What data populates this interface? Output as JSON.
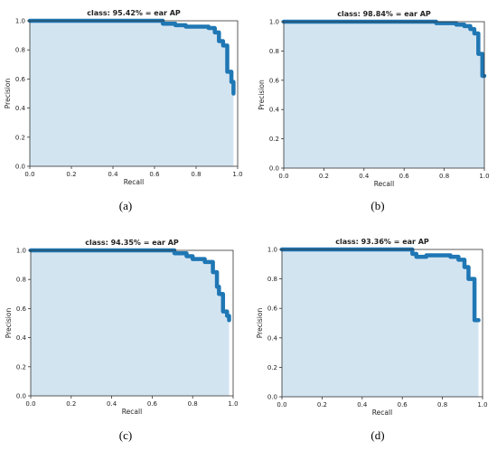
{
  "colors": {
    "line": "#1f77b4",
    "fill": "#d3e4f1",
    "axis": "#333333",
    "text": "#222222"
  },
  "chart_data": [
    {
      "type": "area",
      "caption": "(a)",
      "title": "class: 95.42% = ear AP",
      "xlabel": "Recall",
      "ylabel": "Precision",
      "xlim": [
        0,
        1.0
      ],
      "ylim": [
        0,
        1.0
      ],
      "xticks": [
        "0.0",
        "0.2",
        "0.4",
        "0.6",
        "0.8",
        "1.0"
      ],
      "yticks": [
        "0.0",
        "0.2",
        "0.4",
        "0.6",
        "0.8",
        "1.0"
      ],
      "grid": false,
      "x": [
        0,
        0.64,
        0.64,
        0.7,
        0.7,
        0.75,
        0.75,
        0.86,
        0.86,
        0.89,
        0.89,
        0.91,
        0.91,
        0.93,
        0.93,
        0.95,
        0.95,
        0.97,
        0.97,
        0.98,
        0.98
      ],
      "y": [
        1.0,
        1.0,
        0.98,
        0.98,
        0.97,
        0.97,
        0.96,
        0.96,
        0.95,
        0.95,
        0.92,
        0.92,
        0.86,
        0.86,
        0.83,
        0.83,
        0.65,
        0.65,
        0.58,
        0.58,
        0.5
      ]
    },
    {
      "type": "area",
      "caption": "(b)",
      "title": "class: 98.84% = ear AP",
      "xlabel": "Recall",
      "ylabel": "Precision",
      "xlim": [
        0,
        1.0
      ],
      "ylim": [
        0,
        1.0
      ],
      "xticks": [
        "0.0",
        "0.2",
        "0.4",
        "0.6",
        "0.8",
        "1.0"
      ],
      "yticks": [
        "0.0",
        "0.2",
        "0.4",
        "0.6",
        "0.8",
        "1.0"
      ],
      "grid": false,
      "x": [
        0,
        0.76,
        0.76,
        0.86,
        0.86,
        0.9,
        0.9,
        0.93,
        0.93,
        0.95,
        0.95,
        0.97,
        0.97,
        0.99,
        0.99,
        1.0
      ],
      "y": [
        1.0,
        1.0,
        0.99,
        0.99,
        0.98,
        0.98,
        0.97,
        0.97,
        0.95,
        0.95,
        0.92,
        0.92,
        0.78,
        0.78,
        0.63,
        0.63
      ]
    },
    {
      "type": "area",
      "caption": "(c)",
      "title": "class: 94.35% = ear AP",
      "xlabel": "Recall",
      "ylabel": "Precision",
      "xlim": [
        0,
        1.0
      ],
      "ylim": [
        0,
        1.0
      ],
      "xticks": [
        "0.0",
        "0.2",
        "0.4",
        "0.6",
        "0.8",
        "1.0"
      ],
      "yticks": [
        "0.0",
        "0.2",
        "0.4",
        "0.6",
        "0.8",
        "1.0"
      ],
      "grid": false,
      "x": [
        0,
        0.71,
        0.71,
        0.77,
        0.77,
        0.8,
        0.8,
        0.86,
        0.86,
        0.9,
        0.9,
        0.92,
        0.92,
        0.93,
        0.93,
        0.95,
        0.95,
        0.97,
        0.97,
        0.98,
        0.98
      ],
      "y": [
        1.0,
        1.0,
        0.98,
        0.98,
        0.96,
        0.96,
        0.94,
        0.94,
        0.92,
        0.92,
        0.85,
        0.85,
        0.75,
        0.75,
        0.7,
        0.7,
        0.58,
        0.58,
        0.55,
        0.55,
        0.52
      ]
    },
    {
      "type": "area",
      "caption": "(d)",
      "title": "class: 93.36% = ear AP",
      "xlabel": "Recall",
      "ylabel": "Precision",
      "xlim": [
        0,
        1.0
      ],
      "ylim": [
        0,
        1.0
      ],
      "xticks": [
        "0.0",
        "0.2",
        "0.4",
        "0.6",
        "0.8",
        "1.0"
      ],
      "yticks": [
        "0.0",
        "0.2",
        "0.4",
        "0.6",
        "0.8",
        "1.0"
      ],
      "grid": false,
      "x": [
        0,
        0.65,
        0.65,
        0.67,
        0.67,
        0.72,
        0.72,
        0.84,
        0.84,
        0.88,
        0.88,
        0.91,
        0.91,
        0.93,
        0.93,
        0.96,
        0.96,
        0.98
      ],
      "y": [
        1.0,
        1.0,
        0.97,
        0.97,
        0.95,
        0.95,
        0.96,
        0.96,
        0.95,
        0.95,
        0.93,
        0.93,
        0.88,
        0.88,
        0.8,
        0.8,
        0.52,
        0.52
      ]
    }
  ]
}
